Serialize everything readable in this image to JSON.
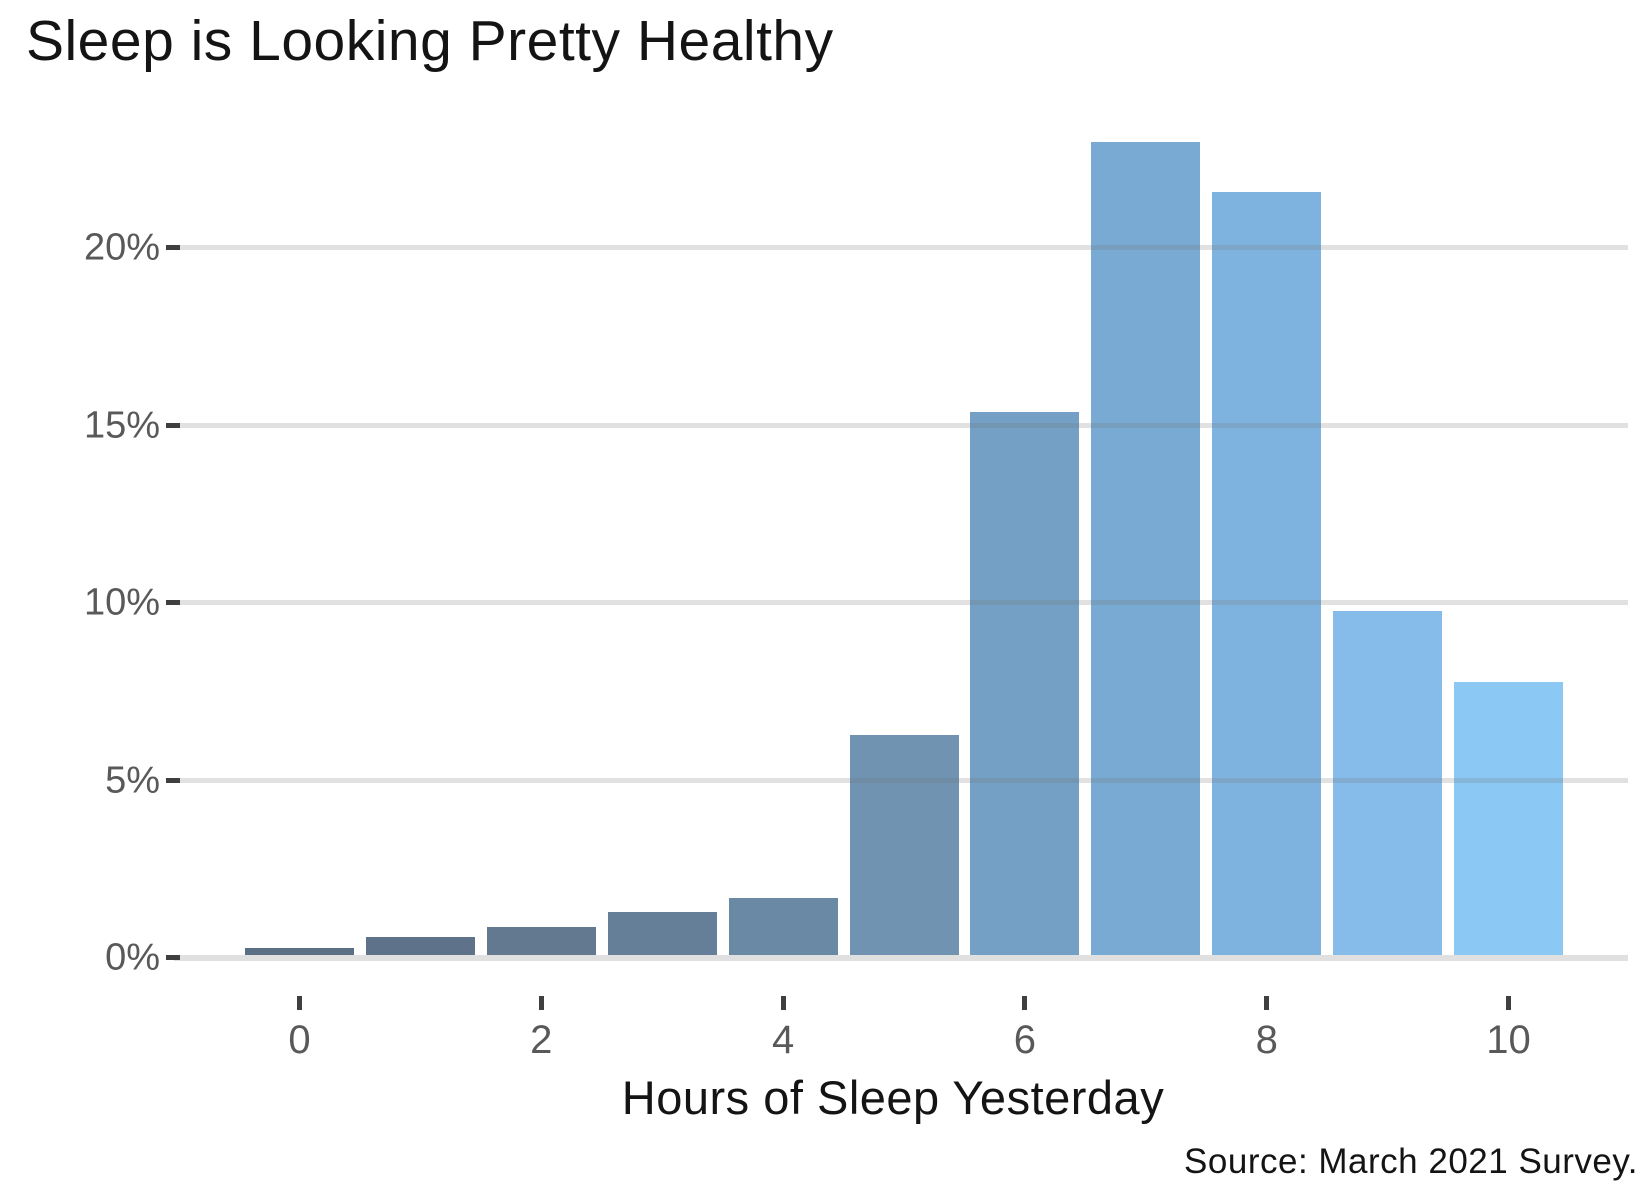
{
  "title": "Sleep is Looking Pretty Healthy",
  "source": "Source: March 2021 Survey.",
  "x_axis": {
    "label": "Hours of Sleep Yesterday",
    "ticks": [
      {
        "label": "0",
        "value": 0
      },
      {
        "label": "2",
        "value": 2
      },
      {
        "label": "4",
        "value": 4
      },
      {
        "label": "6",
        "value": 6
      },
      {
        "label": "8",
        "value": 8
      },
      {
        "label": "10",
        "value": 10
      }
    ]
  },
  "y_axis": {
    "ticks": [
      {
        "label": "0%",
        "value": 0
      },
      {
        "label": "5%",
        "value": 5
      },
      {
        "label": "10%",
        "value": 10
      },
      {
        "label": "15%",
        "value": 15
      },
      {
        "label": "20%",
        "value": 20
      }
    ]
  },
  "chart_data": {
    "type": "bar",
    "title": "Sleep is Looking Pretty Healthy",
    "xlabel": "Hours of Sleep Yesterday",
    "ylabel": "",
    "categories": [
      0,
      1,
      2,
      3,
      4,
      5,
      6,
      7,
      8,
      9,
      10
    ],
    "values": [
      0.2,
      0.5,
      0.8,
      1.2,
      1.6,
      6.2,
      15.3,
      22.9,
      21.5,
      9.7,
      7.7
    ],
    "value_format": "percent",
    "ylim": [
      0,
      23.5
    ],
    "xlim": [
      -1,
      11
    ],
    "grid": "horizontal",
    "grid_values": [
      5,
      10,
      15,
      20
    ],
    "legend": "none",
    "bar_colors": [
      "#5b6f84",
      "#5e7389",
      "#62798f",
      "#667f99",
      "#6a89a4",
      "#6f93b1",
      "#73a0c4",
      "#79aad3",
      "#7fb3df",
      "#85bce9",
      "#8bc8f3"
    ],
    "annotation": "Source: March 2021 Survey."
  },
  "colors": {
    "background": "#ffffff",
    "gridline": "#e0e0e0",
    "axis_line": "#e0e0e0",
    "tick_mark": "#3f3f3f",
    "tick_label": "#595959",
    "text": "#141414"
  }
}
